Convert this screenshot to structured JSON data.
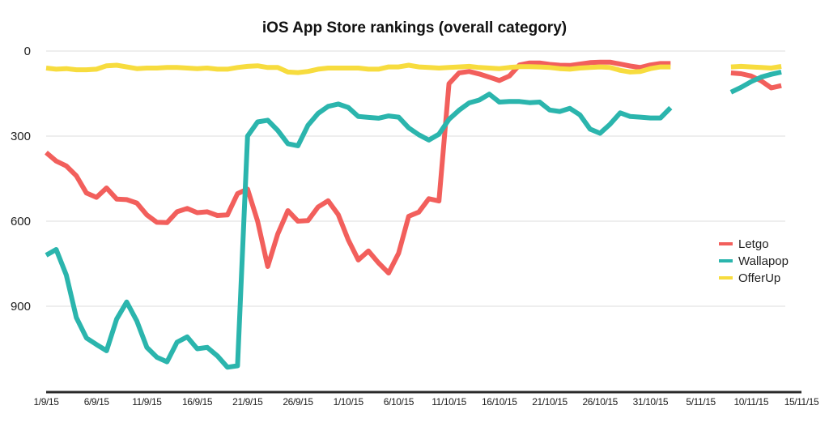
{
  "chart_data": {
    "type": "line",
    "title": "iOS App Store rankings (overall category)",
    "xlabel": "",
    "ylabel": "",
    "ylim": [
      1200,
      0
    ],
    "y_inverted": true,
    "yticks": [
      "0",
      "300",
      "600",
      "900"
    ],
    "ytick_values": [
      0,
      300,
      600,
      900
    ],
    "xticks": [
      "1/9/15",
      "6/9/15",
      "11/9/15",
      "16/9/15",
      "21/9/15",
      "26/9/15",
      "1/10/15",
      "6/10/15",
      "11/10/15",
      "16/10/15",
      "21/10/15",
      "26/10/15",
      "31/10/15",
      "5/11/15",
      "10/11/15",
      "15/11/15"
    ],
    "xlim": [
      "1/9/15",
      "15/11/15"
    ],
    "grid": true,
    "legend_position": "right",
    "x": [
      "1/9/15",
      "2/9/15",
      "3/9/15",
      "4/9/15",
      "5/9/15",
      "6/9/15",
      "7/9/15",
      "8/9/15",
      "9/9/15",
      "10/9/15",
      "11/9/15",
      "12/9/15",
      "13/9/15",
      "14/9/15",
      "15/9/15",
      "16/9/15",
      "17/9/15",
      "18/9/15",
      "19/9/15",
      "20/9/15",
      "21/9/15",
      "22/9/15",
      "23/9/15",
      "24/9/15",
      "25/9/15",
      "26/9/15",
      "27/9/15",
      "28/9/15",
      "29/9/15",
      "30/9/15",
      "1/10/15",
      "2/10/15",
      "3/10/15",
      "4/10/15",
      "5/10/15",
      "6/10/15",
      "7/10/15",
      "8/10/15",
      "9/10/15",
      "10/10/15",
      "11/10/15",
      "12/10/15",
      "13/10/15",
      "14/10/15",
      "15/10/15",
      "16/10/15",
      "17/10/15",
      "18/10/15",
      "19/10/15",
      "20/10/15",
      "21/10/15",
      "22/10/15",
      "23/10/15",
      "24/10/15",
      "25/10/15",
      "26/10/15",
      "27/10/15",
      "28/10/15",
      "29/10/15",
      "30/10/15",
      "31/10/15",
      "1/11/15",
      "2/11/15",
      "3/11/15",
      "4/11/15",
      "5/11/15",
      "6/11/15",
      "7/11/15",
      "8/11/15",
      "9/11/15",
      "10/11/15",
      "11/11/15",
      "12/11/15",
      "13/11/15"
    ],
    "series": [
      {
        "name": "Letgo",
        "color": "#f25f5c",
        "values": [
          358,
          388,
          405,
          440,
          501,
          516,
          483,
          522,
          524,
          536,
          578,
          604,
          605,
          567,
          555,
          570,
          567,
          580,
          578,
          503,
          487,
          600,
          760,
          645,
          563,
          600,
          598,
          550,
          528,
          577,
          666,
          737,
          705,
          747,
          783,
          713,
          583,
          568,
          521,
          529,
          115,
          77,
          72,
          81,
          92,
          104,
          88,
          49,
          42,
          42,
          47,
          50,
          51,
          46,
          41,
          39,
          39,
          46,
          53,
          58,
          49,
          44,
          44,
          null,
          null,
          null,
          null,
          null,
          77,
          80,
          88,
          105,
          130,
          122
        ]
      },
      {
        "name": "Wallapop",
        "color": "#2bb5ad",
        "values": [
          720,
          700,
          790,
          940,
          1012,
          1035,
          1057,
          945,
          885,
          952,
          1045,
          1080,
          1096,
          1027,
          1008,
          1050,
          1045,
          1075,
          1115,
          1110,
          300,
          250,
          244,
          280,
          327,
          334,
          262,
          220,
          195,
          187,
          199,
          231,
          234,
          237,
          229,
          233,
          271,
          295,
          314,
          293,
          241,
          209,
          183,
          173,
          152,
          180,
          178,
          178,
          182,
          180,
          208,
          213,
          202,
          225,
          275,
          290,
          258,
          218,
          231,
          233,
          236,
          236,
          200,
          null,
          null,
          null,
          null,
          null,
          145,
          128,
          108,
          92,
          82,
          74
        ]
      },
      {
        "name": "OfferUp",
        "color": "#f7dc3e",
        "values": [
          60,
          64,
          62,
          66,
          66,
          64,
          52,
          50,
          56,
          62,
          60,
          60,
          58,
          58,
          60,
          62,
          60,
          64,
          64,
          58,
          54,
          52,
          58,
          58,
          74,
          76,
          72,
          64,
          60,
          60,
          60,
          60,
          64,
          64,
          56,
          56,
          50,
          56,
          58,
          60,
          58,
          56,
          54,
          58,
          60,
          62,
          58,
          55,
          55,
          56,
          58,
          62,
          64,
          60,
          58,
          56,
          58,
          68,
          74,
          72,
          62,
          56,
          56,
          null,
          null,
          null,
          null,
          null,
          56,
          54,
          56,
          58,
          60,
          54
        ]
      }
    ]
  }
}
